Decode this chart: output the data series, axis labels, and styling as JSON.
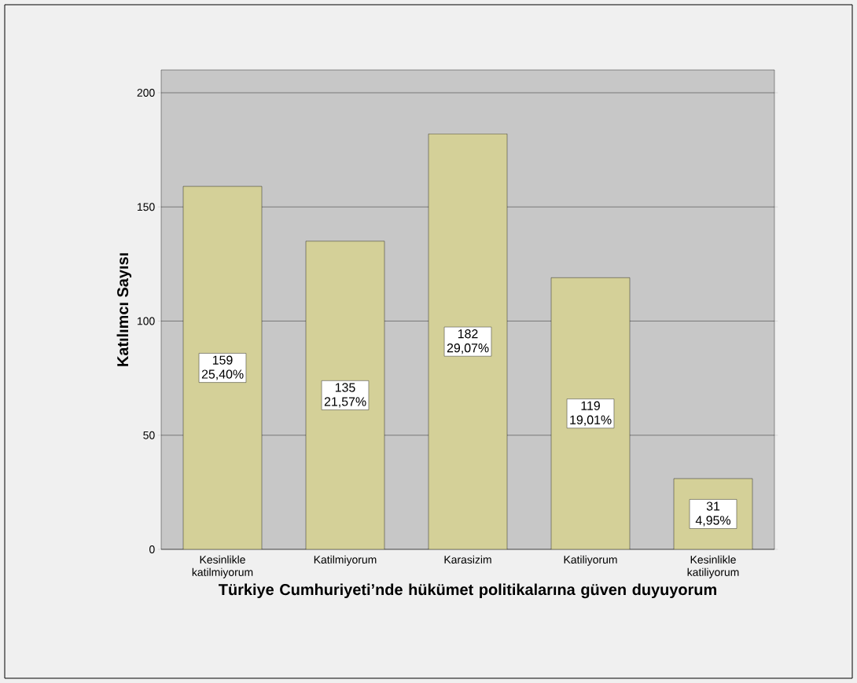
{
  "chart_data": {
    "type": "bar",
    "xlabel": "Türkiye Cumhuriyeti’nde hükümet politikalarına güven duyuyorum",
    "ylabel": "Katılımcı Sayısı",
    "categories": [
      "Kesinlikle katilmiyorum",
      "Katilmiyorum",
      "Karasizim",
      "Katiliyorum",
      "Kesinlikle katiliyorum"
    ],
    "values": [
      159,
      135,
      182,
      119,
      31
    ],
    "value_labels": [
      "159 25,40%",
      "135 21,57%",
      "182 29,07%",
      "119 19,01%",
      "31 4,95%"
    ],
    "color": "#d4d098",
    "ylim": [
      0,
      210
    ],
    "yticks": [
      0,
      50,
      100,
      150,
      200
    ],
    "grid": "y"
  }
}
